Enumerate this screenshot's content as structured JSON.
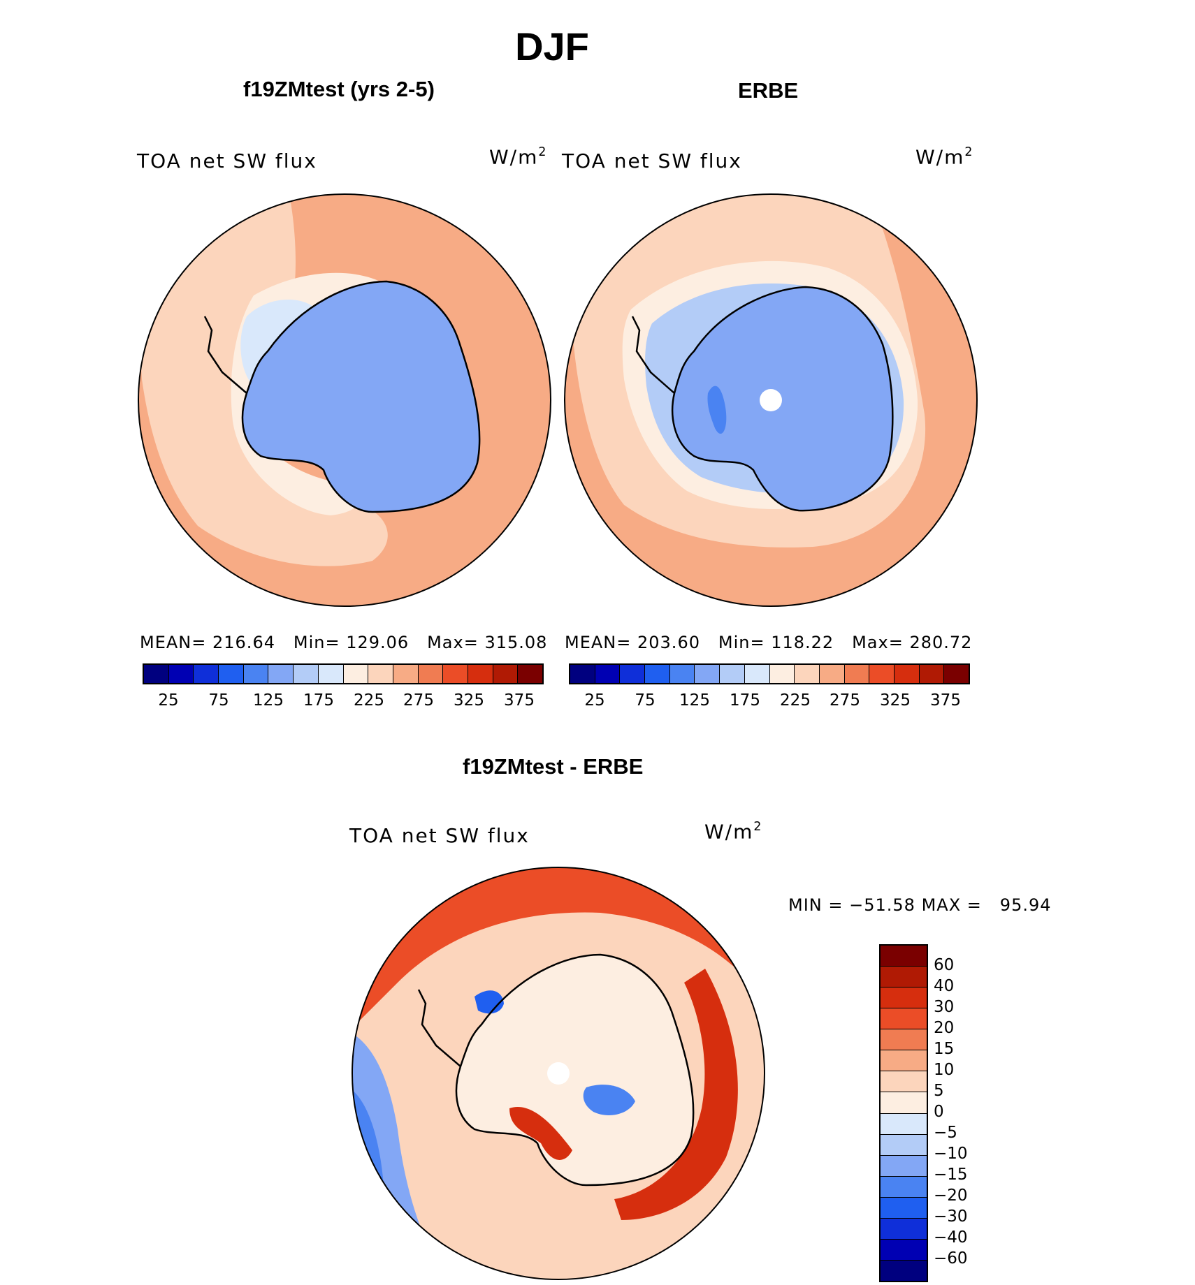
{
  "title": "DJF",
  "colors": {
    "abs_scale": [
      "#00007f",
      "#0000b3",
      "#0f2fd9",
      "#1f5ff0",
      "#4a83f2",
      "#83a7f5",
      "#b3ccf7",
      "#d9e8fb",
      "#fdeee1",
      "#fcd5bc",
      "#f7ab85",
      "#f07c52",
      "#eb4d27",
      "#d62e0e",
      "#b01a04",
      "#7a0000"
    ],
    "diff_scale": [
      "#7a0000",
      "#b01a04",
      "#d62e0e",
      "#eb4d27",
      "#f07c52",
      "#f7ab85",
      "#fcd5bc",
      "#fdeee1",
      "#d9e8fb",
      "#b3ccf7",
      "#83a7f5",
      "#4a83f2",
      "#1f5ff0",
      "#0f2fd9",
      "#0000b3",
      "#00007f"
    ]
  },
  "chart_data": [
    {
      "type": "heatmap",
      "projection": "south-polar-stereographic",
      "title": "f19ZMtest (yrs 2-5)",
      "variable": "TOA net SW flux",
      "units": "W/m2",
      "units_base": "W/m",
      "units_exp": "2",
      "stats": {
        "mean_label": "MEAN=",
        "mean": "216.64",
        "min_label": "Min=",
        "min": "129.06",
        "max_label": "Max=",
        "max": "315.08"
      },
      "colorbar_ticks": [
        "25",
        "75",
        "125",
        "175",
        "225",
        "275",
        "325",
        "375"
      ],
      "levels": [
        25,
        50,
        75,
        100,
        125,
        150,
        175,
        200,
        225,
        250,
        275,
        300,
        325,
        350,
        375
      ],
      "mean_value": 216.64,
      "min_value": 129.06,
      "max_value": 315.08
    },
    {
      "type": "heatmap",
      "projection": "south-polar-stereographic",
      "title": "ERBE",
      "variable": "TOA net SW flux",
      "units": "W/m2",
      "units_base": "W/m",
      "units_exp": "2",
      "stats": {
        "mean_label": "MEAN=",
        "mean": "203.60",
        "min_label": "Min=",
        "min": "118.22",
        "max_label": "Max=",
        "max": "280.72"
      },
      "colorbar_ticks": [
        "25",
        "75",
        "125",
        "175",
        "225",
        "275",
        "325",
        "375"
      ],
      "levels": [
        25,
        50,
        75,
        100,
        125,
        150,
        175,
        200,
        225,
        250,
        275,
        300,
        325,
        350,
        375
      ],
      "mean_value": 203.6,
      "min_value": 118.22,
      "max_value": 280.72
    },
    {
      "type": "heatmap",
      "projection": "south-polar-stereographic",
      "title": "f19ZMtest - ERBE",
      "variable": "TOA net SW flux",
      "units": "W/m2",
      "units_base": "W/m",
      "units_exp": "2",
      "stats": {
        "min_label": "MIN =",
        "min": "−51.58",
        "max_label": "MAX =",
        "max": "95.94"
      },
      "colorbar_ticks": [
        "60",
        "40",
        "30",
        "20",
        "15",
        "10",
        "5",
        "0",
        "−5",
        "−10",
        "−15",
        "−20",
        "−30",
        "−40",
        "−60"
      ],
      "levels": [
        60,
        40,
        30,
        20,
        15,
        10,
        5,
        0,
        -5,
        -10,
        -15,
        -20,
        -30,
        -40,
        -60
      ],
      "min_value": -51.58,
      "max_value": 95.94
    }
  ]
}
